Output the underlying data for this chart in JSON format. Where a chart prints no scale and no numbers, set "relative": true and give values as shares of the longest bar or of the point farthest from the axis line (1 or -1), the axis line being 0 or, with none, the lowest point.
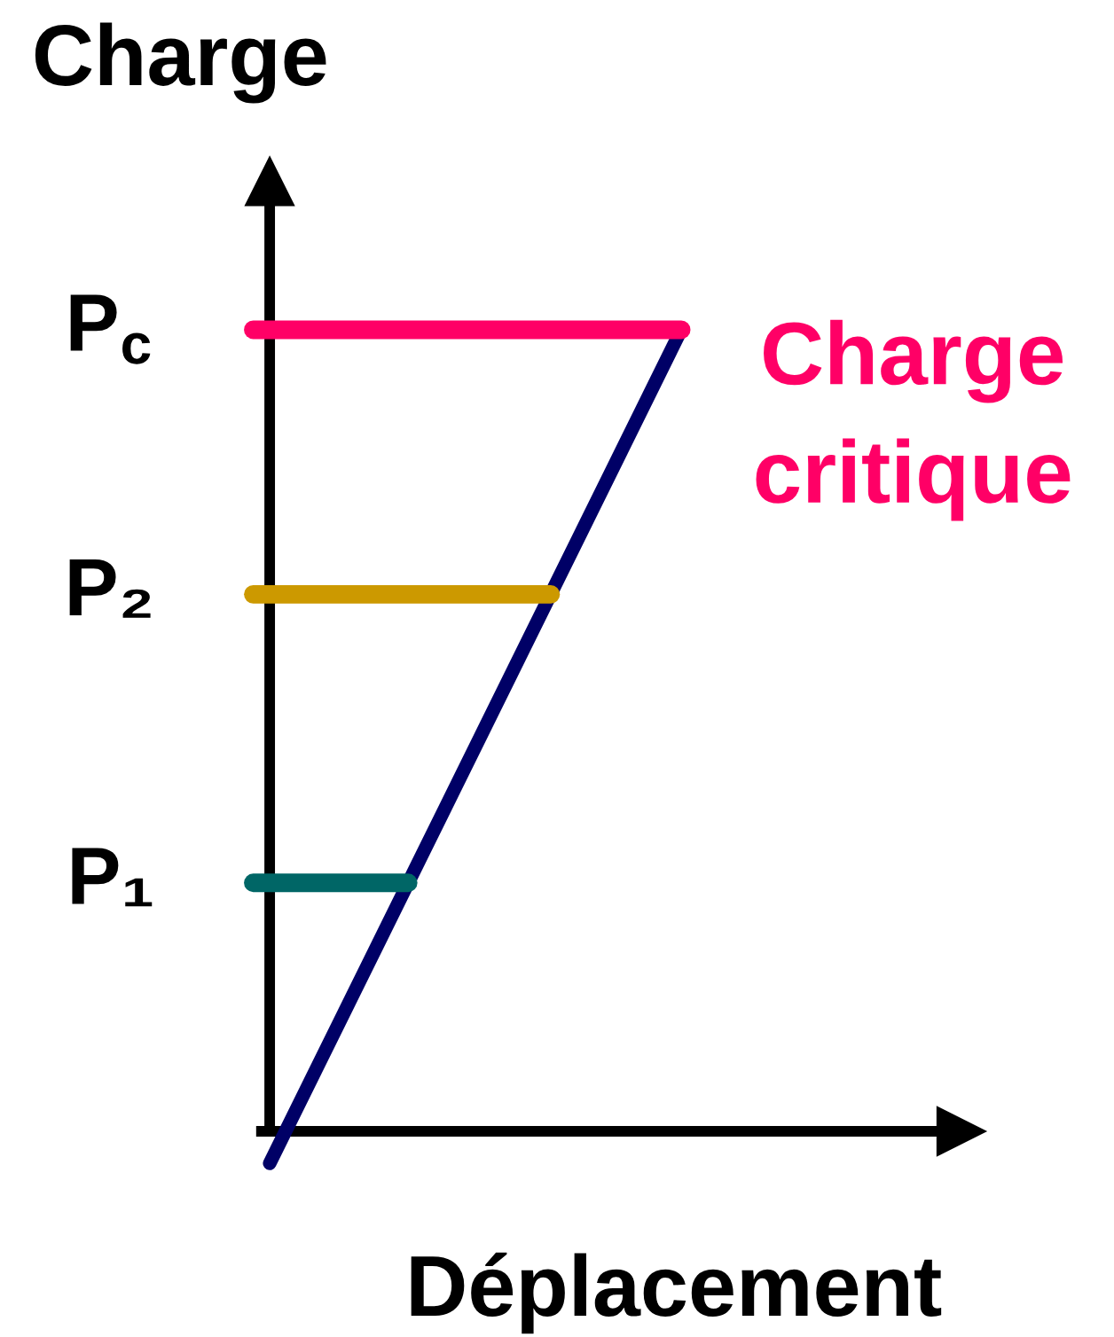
{
  "chart_data": {
    "type": "line",
    "relative": true,
    "xlabel": "Déplacement",
    "ylabel": "Charge",
    "tick_labels": false,
    "categories": [
      null,
      null
    ],
    "series": [
      {
        "color": "#000066",
        "values": [
          -0.04,
          1
        ]
      }
    ],
    "ref_lines": [
      {
        "axis": "y",
        "value": 0.31,
        "label": "P₁",
        "color": "#006666"
      },
      {
        "axis": "y",
        "value": 0.67,
        "label": "P₂",
        "color": "#cc9900"
      },
      {
        "axis": "y",
        "value": 1,
        "label": "P$_{c}$",
        "color": "#ff0066"
      }
    ],
    "annotations": [
      "Charge\ncritique"
    ]
  }
}
